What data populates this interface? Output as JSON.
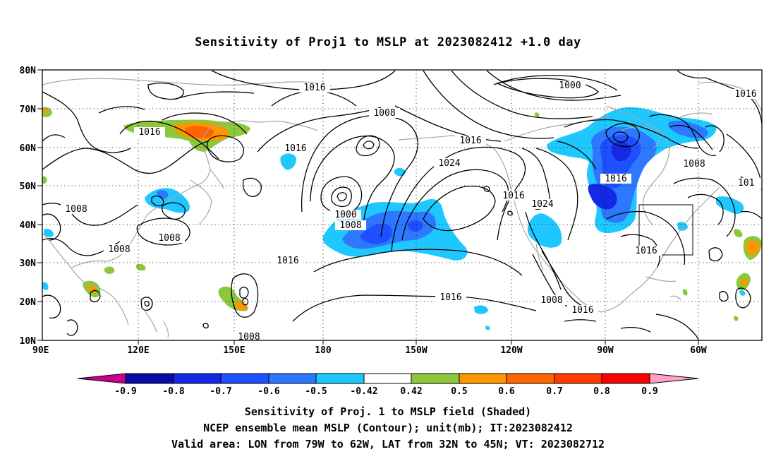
{
  "title": "Sensitivity of Proj1 to MSLP at 2023082412 +1.0 day",
  "lat_labels": [
    "80N",
    "70N",
    "60N",
    "50N",
    "40N",
    "30N",
    "20N",
    "10N"
  ],
  "lon_labels": [
    "90E",
    "120E",
    "150E",
    "180",
    "150W",
    "120W",
    "90W",
    "60W"
  ],
  "contour_labels": [
    "1016",
    "1016",
    "1016",
    "1016",
    "1016",
    "1016",
    "1016",
    "1016",
    "1016",
    "1016",
    "1016",
    "1016",
    "1008",
    "1008",
    "1008",
    "1008",
    "1008",
    "1008",
    "1008",
    "1008",
    "1000",
    "1000",
    "1024",
    "1024",
    "101"
  ],
  "colorbar": {
    "tick_labels": [
      "-0.9",
      "-0.8",
      "-0.7",
      "-0.6",
      "-0.5",
      "-0.42",
      "0.42",
      "0.5",
      "0.6",
      "0.7",
      "0.8",
      "0.9"
    ],
    "colors": [
      "#c8008c",
      "#0a0aa8",
      "#1428e6",
      "#1e50ff",
      "#2d78ff",
      "#1ec8ff",
      "#ffffff",
      "#8cc83c",
      "#ff9600",
      "#ff6400",
      "#ff3c00",
      "#ff0000",
      "#ffa0c8"
    ]
  },
  "validation_box": {
    "lon_west": "79W",
    "lon_east": "62W",
    "lat_south": "32N",
    "lat_north": "45N"
  },
  "captions": {
    "line1": "Sensitivity of Proj. 1 to MSLP field (Shaded)",
    "line2": "NCEP ensemble mean MSLP (Contour); unit(mb); IT:2023082412",
    "line3": "Valid area: LON from 79W to 62W, LAT from 32N to 45N; VT: 2023082712"
  }
}
